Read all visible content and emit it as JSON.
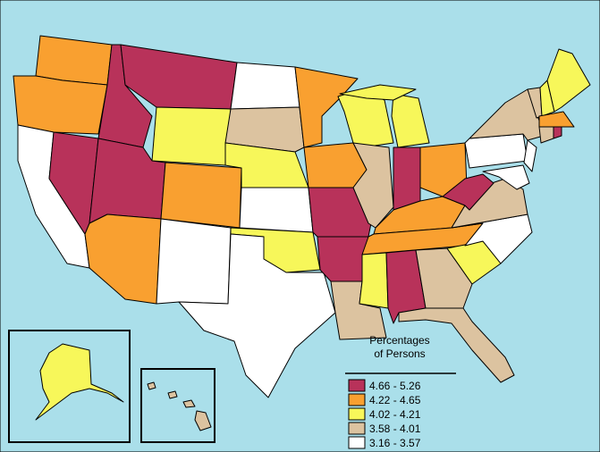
{
  "legend": {
    "title_lines": [
      "Percentages",
      "of Persons"
    ],
    "items": [
      {
        "label": "4.66 - 5.26",
        "color": "#b8325a"
      },
      {
        "label": "4.22 - 4.65",
        "color": "#f9a030"
      },
      {
        "label": "4.02 - 4.21",
        "color": "#f7f75a"
      },
      {
        "label": "3.58 - 4.01",
        "color": "#dcc3a0"
      },
      {
        "label": "3.16 - 3.57",
        "color": "#ffffff"
      }
    ]
  }
}
